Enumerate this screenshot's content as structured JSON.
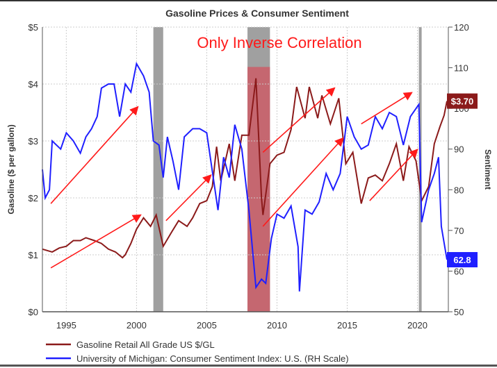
{
  "chart_data": {
    "type": "line",
    "title": "Gasoline Prices & Consumer Sentiment",
    "annotation": "Only Inverse Correlation",
    "ylabel_left": "Gasoline ($ per gallon)",
    "ylabel_right": "Sentiment",
    "xlim": [
      1993.3,
      2022.2
    ],
    "ylim_left": [
      0,
      5
    ],
    "ylim_right": [
      50,
      120
    ],
    "x_ticks": [
      "1995",
      "2000",
      "2005",
      "2010",
      "2015",
      "2020"
    ],
    "x_tick_values": [
      1995,
      2000,
      2005,
      2010,
      2015,
      2020
    ],
    "y_left_ticks": [
      "$0",
      "$1",
      "$2",
      "$3",
      "$4",
      "$5"
    ],
    "y_left_tick_values": [
      0,
      1,
      2,
      3,
      4,
      5
    ],
    "y_right_ticks": [
      "50",
      "60",
      "70",
      "80",
      "90",
      "100",
      "110",
      "120"
    ],
    "y_right_tick_values": [
      50,
      60,
      70,
      80,
      90,
      100,
      110,
      120
    ],
    "grid": true,
    "legend_position": "bottom-left",
    "recessions": [
      [
        2001.2,
        2001.9
      ],
      [
        2007.9,
        2009.5
      ],
      [
        2020.1,
        2020.3
      ]
    ],
    "highlight_period": [
      2007.9,
      2009.5
    ],
    "series": [
      {
        "name": "Gasoline Retail All Grade US $/GL",
        "axis": "left",
        "color": "#8b1a1a",
        "last_label": "$3.70",
        "x": [
          1993.3,
          1994,
          1994.5,
          1995,
          1995.5,
          1996,
          1996.4,
          1997,
          1997.5,
          1998,
          1998.5,
          1999,
          1999.2,
          1999.6,
          2000,
          2000.5,
          2001,
          2001.4,
          2001.9,
          2002.5,
          2003,
          2003.3,
          2003.6,
          2004,
          2004.5,
          2005,
          2005.4,
          2005.7,
          2006,
          2006.6,
          2007,
          2007.5,
          2008,
          2008.5,
          2008.9,
          2009,
          2009.5,
          2010,
          2010.5,
          2011,
          2011.4,
          2012,
          2012.3,
          2012.9,
          2013.2,
          2013.8,
          2014.4,
          2014.9,
          2015.4,
          2016,
          2016.5,
          2017,
          2017.5,
          2018,
          2018.5,
          2019,
          2019.4,
          2019.9,
          2020.3,
          2020.8,
          2021.2,
          2021.6,
          2021.9,
          2022.1
        ],
        "values": [
          1.1,
          1.05,
          1.12,
          1.15,
          1.25,
          1.25,
          1.3,
          1.25,
          1.2,
          1.1,
          1.05,
          0.95,
          1.0,
          1.2,
          1.45,
          1.65,
          1.5,
          1.7,
          1.15,
          1.4,
          1.6,
          1.55,
          1.5,
          1.65,
          1.9,
          1.95,
          2.2,
          2.9,
          2.3,
          2.95,
          2.3,
          3.1,
          3.1,
          4.1,
          2.0,
          1.7,
          2.6,
          2.75,
          2.8,
          3.2,
          3.95,
          3.4,
          3.95,
          3.4,
          3.8,
          3.3,
          3.75,
          2.6,
          2.8,
          1.9,
          2.35,
          2.4,
          2.3,
          2.6,
          2.95,
          2.3,
          2.9,
          2.65,
          1.95,
          2.2,
          2.95,
          3.25,
          3.45,
          3.7
        ]
      },
      {
        "name": "University of Michigan: Consumer Sentiment Index: U.S. (RH Scale)",
        "axis": "right",
        "color": "#1f1fff",
        "last_label": "62.8",
        "x": [
          1993.3,
          1993.5,
          1993.8,
          1994,
          1994.6,
          1995,
          1995.5,
          1996,
          1996.4,
          1996.8,
          1997.2,
          1997.5,
          1998,
          1998.4,
          1998.8,
          1999.2,
          1999.6,
          2000,
          2000.5,
          2000.9,
          2001.2,
          2001.6,
          2001.9,
          2002.2,
          2002.6,
          2003,
          2003.4,
          2004,
          2004.5,
          2005,
          2005.8,
          2006.2,
          2006.6,
          2007,
          2007.5,
          2008,
          2008.5,
          2008.9,
          2009.2,
          2009.6,
          2010,
          2010.5,
          2011,
          2011.5,
          2011.6,
          2012,
          2012.5,
          2013,
          2013.5,
          2014,
          2014.5,
          2015,
          2015.5,
          2016,
          2016.5,
          2017,
          2017.5,
          2018,
          2018.5,
          2019,
          2019.5,
          2020.1,
          2020.3,
          2020.8,
          2021.2,
          2021.5,
          2021.7,
          2022.1
        ],
        "values": [
          85,
          78,
          80,
          92,
          90,
          94,
          92,
          89,
          93,
          95,
          98,
          105,
          106,
          106,
          98,
          106,
          104,
          111,
          108,
          104,
          92,
          91,
          83,
          93,
          87,
          80,
          93,
          95,
          95,
          94,
          75,
          88,
          83,
          96,
          90,
          75,
          56,
          58,
          57,
          68,
          74,
          73,
          76,
          66,
          55,
          75,
          74,
          77,
          84,
          80,
          84,
          98,
          93,
          90,
          91,
          98,
          95,
          99,
          98,
          91,
          98,
          101,
          72,
          80,
          84,
          88,
          71,
          62.8
        ]
      }
    ],
    "arrows": [
      {
        "from": [
          1993.9,
          1.9
        ],
        "to": [
          2000.1,
          3.6
        ]
      },
      {
        "from": [
          1993.9,
          0.77
        ],
        "to": [
          2000.3,
          1.7
        ]
      },
      {
        "from": [
          2002.1,
          1.6
        ],
        "to": [
          2005.3,
          2.4
        ]
      },
      {
        "from": [
          2009.0,
          2.8
        ],
        "to": [
          2014.1,
          3.93
        ]
      },
      {
        "from": [
          2009.0,
          1.5
        ],
        "to": [
          2014.7,
          3.05
        ]
      },
      {
        "from": [
          2016.0,
          3.3
        ],
        "to": [
          2019.6,
          3.85
        ]
      },
      {
        "from": [
          2016.6,
          1.95
        ],
        "to": [
          2020.0,
          2.85
        ]
      }
    ],
    "arrow_color": "#ff1a1a",
    "recession_color": "#a0a0a0",
    "highlight_color": "#c9606a"
  }
}
